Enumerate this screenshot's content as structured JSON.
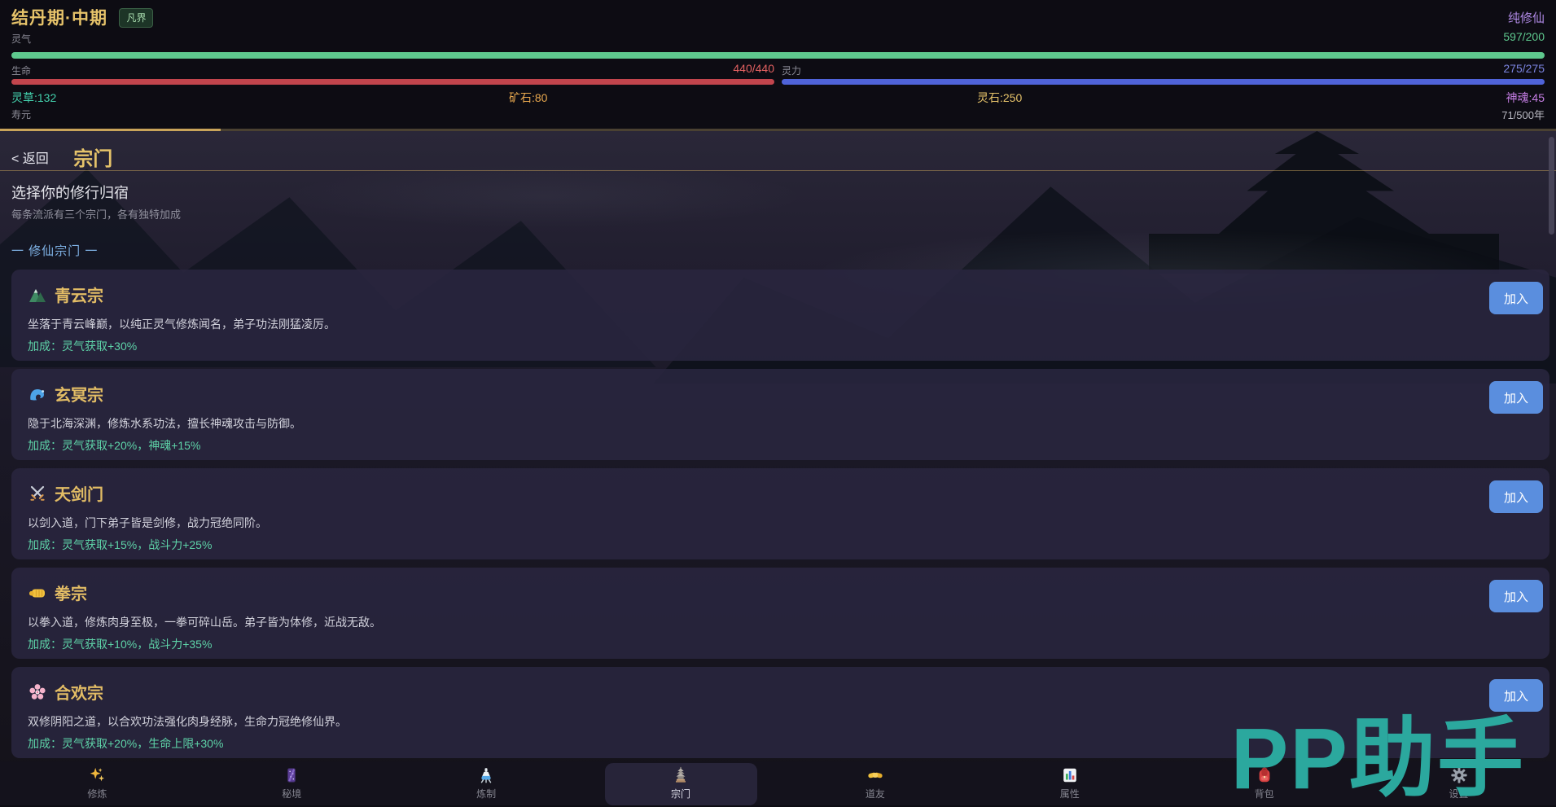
{
  "header": {
    "realm": "结丹期·中期",
    "world_badge": "凡界",
    "path_label": "纯修仙",
    "aura": {
      "label": "灵气",
      "value": "597/200"
    },
    "life": {
      "label": "生命",
      "value": "440/440"
    },
    "mana": {
      "label": "灵力",
      "value": "275/275"
    },
    "resources": [
      {
        "name": "herb",
        "text": "灵草:132"
      },
      {
        "name": "ore",
        "text": "矿石:80"
      },
      {
        "name": "spirit-stone",
        "text": "灵石:250"
      },
      {
        "name": "soul",
        "text": "神魂:45"
      }
    ],
    "lifespan": {
      "label": "寿元",
      "value": "71/500年"
    }
  },
  "page": {
    "back_label": "< 返回",
    "title": "宗门",
    "subtitle": "选择你的修行归宿",
    "hint": "每条流派有三个宗门，各有独特加成",
    "section_label": "一 修仙宗门 一",
    "join_label": "加入"
  },
  "sects": [
    {
      "icon": "mountain-icon",
      "name": "青云宗",
      "desc": "坐落于青云峰巅，以纯正灵气修炼闻名，弟子功法刚猛凌厉。",
      "bonus": "加成：灵气获取+30%"
    },
    {
      "icon": "wave-icon",
      "name": "玄冥宗",
      "desc": "隐于北海深渊，修炼水系功法，擅长神魂攻击与防御。",
      "bonus": "加成：灵气获取+20%，神魂+15%"
    },
    {
      "icon": "crossed-swords-icon",
      "name": "天剑门",
      "desc": "以剑入道，门下弟子皆是剑修，战力冠绝同阶。",
      "bonus": "加成：灵气获取+15%，战斗力+25%"
    },
    {
      "icon": "fist-icon",
      "name": "拳宗",
      "desc": "以拳入道，修炼肉身至极，一拳可碎山岳。弟子皆为体修，近战无敌。",
      "bonus": "加成：灵气获取+10%，战斗力+35%"
    },
    {
      "icon": "blossom-icon",
      "name": "合欢宗",
      "desc": "双修阴阳之道，以合欢功法强化肉身经脉，生命力冠绝修仙界。",
      "bonus": "加成：灵气获取+20%，生命上限+30%"
    }
  ],
  "nav": {
    "items": [
      {
        "icon": "sparkles-icon",
        "label": "修炼",
        "active": false
      },
      {
        "icon": "galaxy-icon",
        "label": "秘境",
        "active": false
      },
      {
        "icon": "alembic-icon",
        "label": "炼制",
        "active": false
      },
      {
        "icon": "pagoda-icon",
        "label": "宗门",
        "active": true
      },
      {
        "icon": "handshake-icon",
        "label": "道友",
        "active": false
      },
      {
        "icon": "bar-chart-icon",
        "label": "属性",
        "active": false
      },
      {
        "icon": "backpack-icon",
        "label": "背包",
        "active": false
      },
      {
        "icon": "gear-icon",
        "label": "设置",
        "active": false
      }
    ]
  },
  "watermark": "PP助手",
  "colors": {
    "accent_gold": "#e6c36a",
    "bar_green": "#5ec98e",
    "bar_red": "#c2454d",
    "bar_blue": "#4f63d9",
    "bonus_teal": "#5ed3a8",
    "button_blue": "#5a8ede",
    "section_blue": "#7fb2e5",
    "watermark_teal": "#2ba89e"
  }
}
